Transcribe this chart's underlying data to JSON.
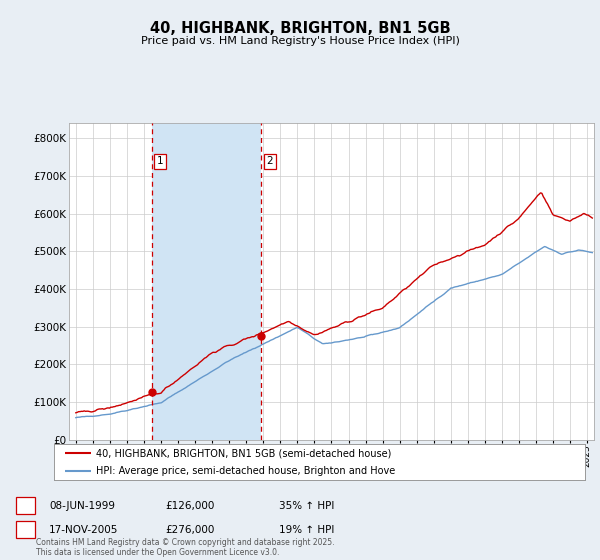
{
  "title": "40, HIGHBANK, BRIGHTON, BN1 5GB",
  "subtitle": "Price paid vs. HM Land Registry's House Price Index (HPI)",
  "ylabel_ticks": [
    "£0",
    "£100K",
    "£200K",
    "£300K",
    "£400K",
    "£500K",
    "£600K",
    "£700K",
    "£800K"
  ],
  "ytick_values": [
    0,
    100000,
    200000,
    300000,
    400000,
    500000,
    600000,
    700000,
    800000
  ],
  "ylim": [
    0,
    840000
  ],
  "xlim_start": 1994.6,
  "xlim_end": 2025.4,
  "sale1_x": 1999.44,
  "sale1_y": 126000,
  "sale1_label": "1",
  "sale1_date": "08-JUN-1999",
  "sale1_price": "£126,000",
  "sale1_hpi": "35% ↑ HPI",
  "sale2_x": 2005.88,
  "sale2_y": 276000,
  "sale2_label": "2",
  "sale2_date": "17-NOV-2005",
  "sale2_price": "£276,000",
  "sale2_hpi": "19% ↑ HPI",
  "legend_line1": "40, HIGHBANK, BRIGHTON, BN1 5GB (semi-detached house)",
  "legend_line2": "HPI: Average price, semi-detached house, Brighton and Hove",
  "footer": "Contains HM Land Registry data © Crown copyright and database right 2025.\nThis data is licensed under the Open Government Licence v3.0.",
  "line_color_red": "#cc0000",
  "line_color_blue": "#6699cc",
  "bg_color": "#e8eef4",
  "plot_bg": "#ffffff",
  "grid_color": "#cccccc",
  "vline_color": "#cc0000",
  "fill_between_color": "#d0e4f4",
  "marker_dot_color": "#cc0000"
}
